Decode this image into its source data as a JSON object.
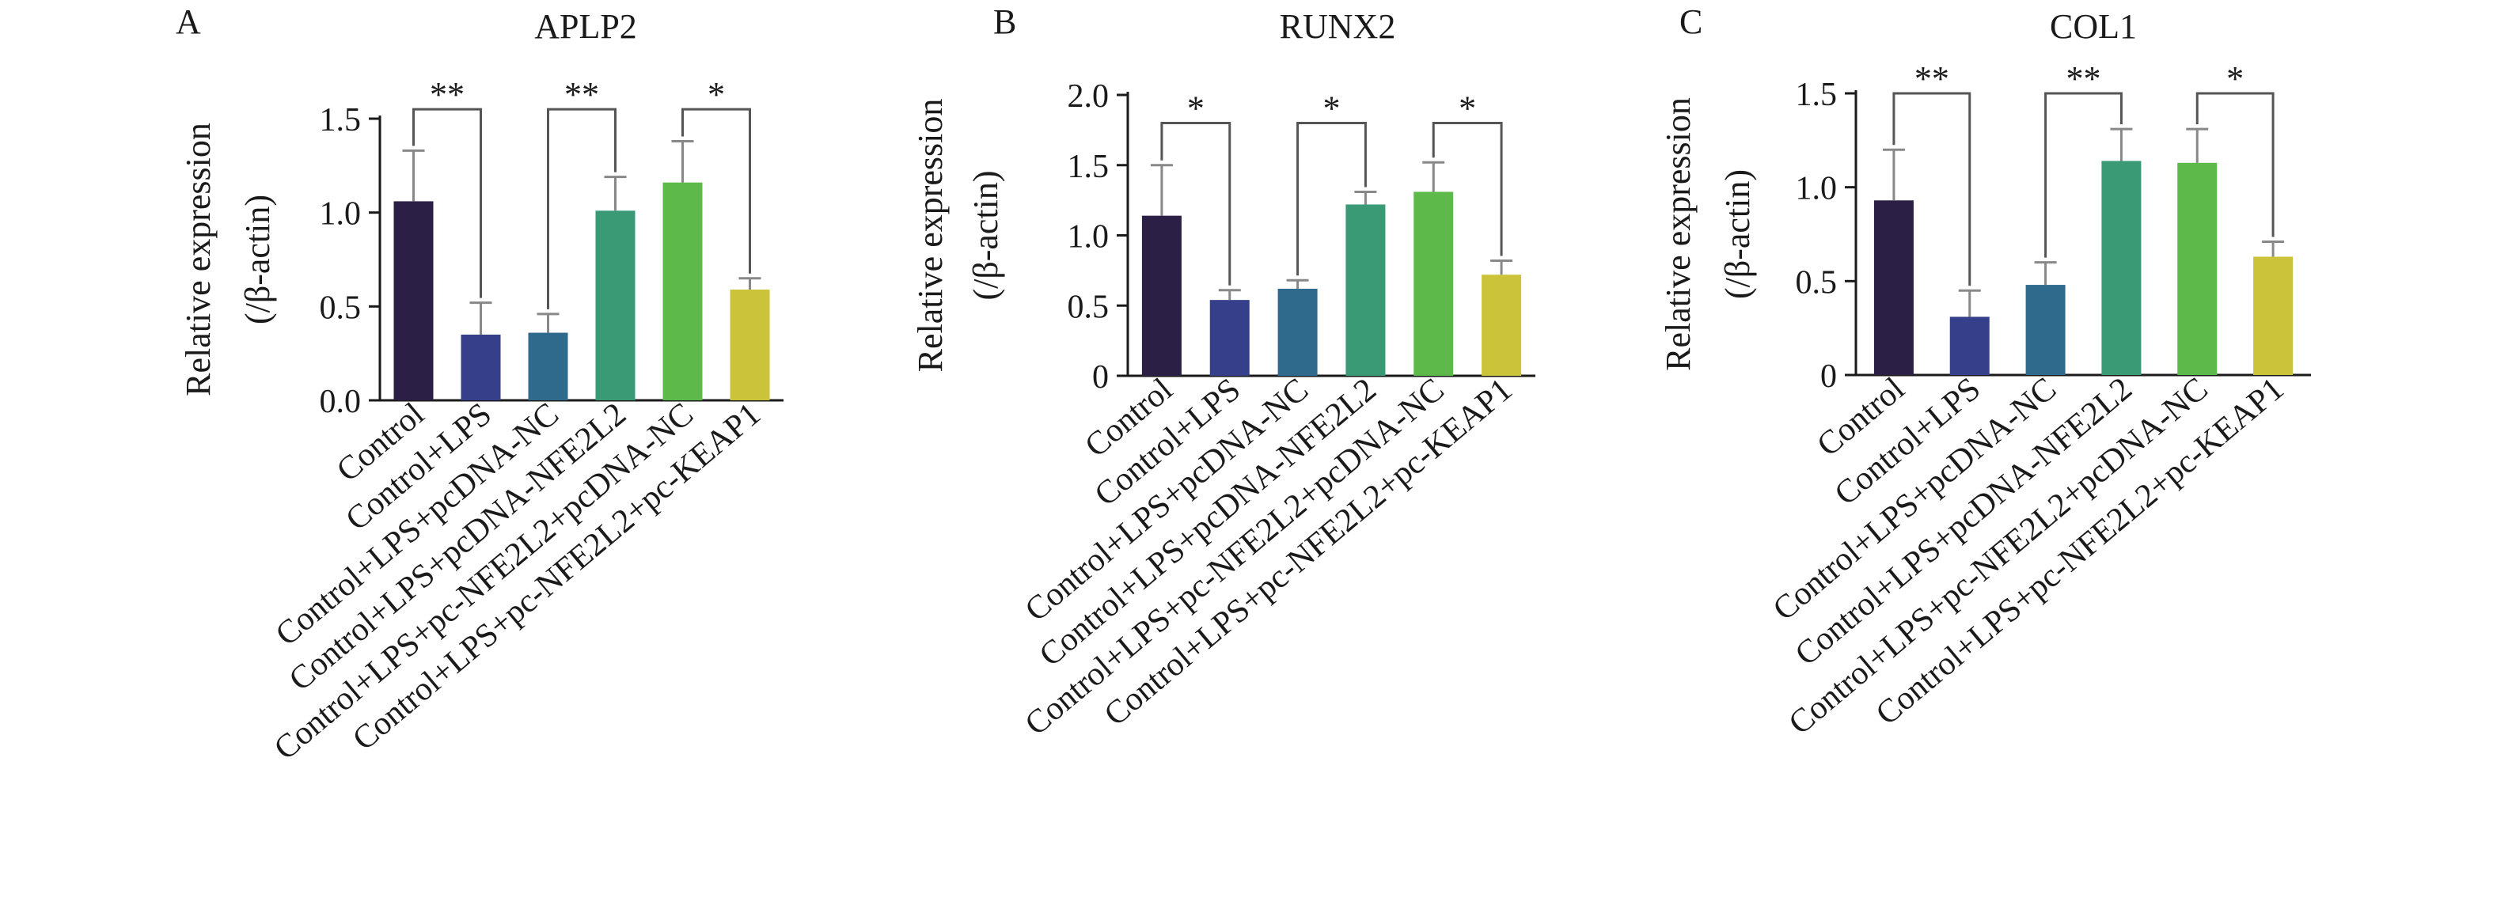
{
  "figure": {
    "bar_colors": [
      "#2b1f45",
      "#36408a",
      "#2f6a8c",
      "#3a9a76",
      "#5db94a",
      "#cbc43b"
    ],
    "axis_color": "#1a1a1a",
    "significance_line_color": "#555555"
  },
  "chart_data": [
    {
      "type": "bar",
      "panel_letter": "A",
      "title": "APLP2",
      "ylabel": "Relative expression",
      "ylabel_line2": "(/β-actin)",
      "xlabel": "",
      "ylim": [
        0,
        1.5
      ],
      "yticks": [
        "0.0",
        "0.5",
        "1.0",
        "1.5"
      ],
      "ytick_values": [
        0,
        0.5,
        1.0,
        1.5
      ],
      "categories": [
        "Control",
        "Control+LPS",
        "Control+LPS+pcDNA-NC",
        "Control+LPS+pcDNA-NFE2L2",
        "Control+LPS+pc-NFE2L2+pcDNA-NC",
        "Control+LPS+pc-NFE2L2+pc-KEAP1"
      ],
      "values": [
        1.06,
        0.35,
        0.36,
        1.01,
        1.16,
        0.59
      ],
      "errors": [
        0.27,
        0.17,
        0.1,
        0.18,
        0.22,
        0.06
      ],
      "significance": [
        {
          "from": 0,
          "to": 1,
          "label": "**",
          "level": 1.55
        },
        {
          "from": 2,
          "to": 3,
          "label": "**",
          "level": 1.55
        },
        {
          "from": 4,
          "to": 5,
          "label": "*",
          "level": 1.55
        }
      ]
    },
    {
      "type": "bar",
      "panel_letter": "B",
      "title": "RUNX2",
      "ylabel": "Relative expression",
      "ylabel_line2": "(/β-actin)",
      "xlabel": "",
      "ylim": [
        0,
        2.0
      ],
      "yticks": [
        "0",
        "0.5",
        "1.0",
        "1.5",
        "2.0"
      ],
      "ytick_values": [
        0,
        0.5,
        1.0,
        1.5,
        2.0
      ],
      "categories": [
        "Control",
        "Control+LPS",
        "Control+LPS+pcDNA-NC",
        "Control+LPS+pcDNA-NFE2L2",
        "Control+LPS+pc-NFE2L2+pcDNA-NC",
        "Control+LPS+pc-NFE2L2+pc-KEAP1"
      ],
      "values": [
        1.14,
        0.54,
        0.62,
        1.22,
        1.31,
        0.72
      ],
      "errors": [
        0.36,
        0.07,
        0.06,
        0.09,
        0.21,
        0.1
      ],
      "significance": [
        {
          "from": 0,
          "to": 1,
          "label": "*",
          "level": 1.8
        },
        {
          "from": 2,
          "to": 3,
          "label": "*",
          "level": 1.8
        },
        {
          "from": 4,
          "to": 5,
          "label": "*",
          "level": 1.8
        }
      ]
    },
    {
      "type": "bar",
      "panel_letter": "C",
      "title": "COL1",
      "ylabel": "Relative expression",
      "ylabel_line2": "(/β-actin)",
      "xlabel": "",
      "ylim": [
        0,
        1.5
      ],
      "yticks": [
        "0",
        "0.5",
        "1.0",
        "1.5"
      ],
      "ytick_values": [
        0,
        0.5,
        1.0,
        1.5
      ],
      "categories": [
        "Control",
        "Control+LPS",
        "Control+LPS+pcDNA-NC",
        "Control+LPS+pcDNA-NFE2L2",
        "Control+LPS+pc-NFE2L2+pcDNA-NC",
        "Control+LPS+pc-NFE2L2+pc-KEAP1"
      ],
      "values": [
        0.93,
        0.31,
        0.48,
        1.14,
        1.13,
        0.63
      ],
      "errors": [
        0.27,
        0.14,
        0.12,
        0.17,
        0.18,
        0.08
      ],
      "significance": [
        {
          "from": 0,
          "to": 1,
          "label": "**",
          "level": 1.5
        },
        {
          "from": 2,
          "to": 3,
          "label": "**",
          "level": 1.5
        },
        {
          "from": 4,
          "to": 5,
          "label": "*",
          "level": 1.5
        }
      ]
    }
  ]
}
